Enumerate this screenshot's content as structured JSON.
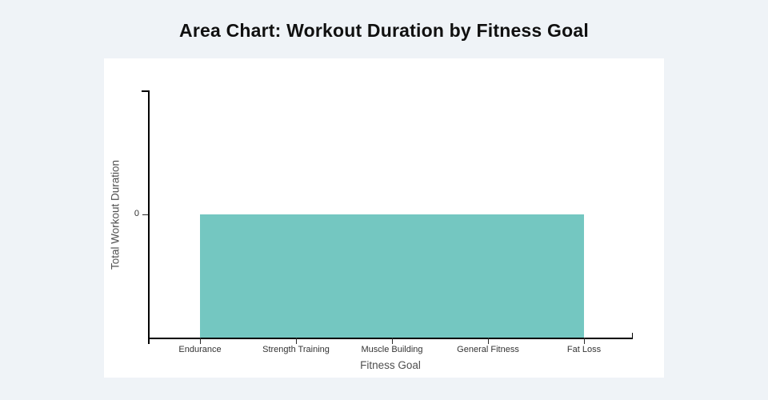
{
  "header": {
    "title": "Area Chart: Workout Duration by Fitness Goal"
  },
  "colors": {
    "page_background": "#eff3f7",
    "card_background": "#ffffff",
    "area_fill": "#74c7c1",
    "axis_line": "#000000",
    "tick_text": "#333333",
    "axis_title_text": "#4f4f4f",
    "title_text": "#101010"
  },
  "chart_data": {
    "type": "area",
    "title": "Area Chart: Workout Duration by Fitness Goal",
    "categories": [
      "Endurance",
      "Strength Training",
      "Muscle Building",
      "General Fitness",
      "Fat Loss"
    ],
    "values": [
      0,
      0,
      0,
      0,
      0
    ],
    "xlabel": "Fitness Goal",
    "ylabel": "Total Workout Duration",
    "y_ticks": [
      "0"
    ],
    "legend": "none",
    "grid": "off",
    "layout_hint": "single teal filled area spanning all categories, top edge at y=0 tick, filled down to the x-axis baseline"
  }
}
